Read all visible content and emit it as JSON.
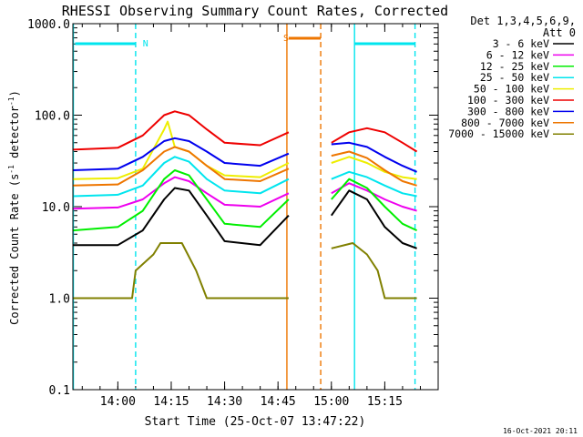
{
  "chart_data": {
    "type": "line",
    "title": "RHESSI Observing Summary Count Rates, Corrected",
    "xlabel": "Start Time (25-Oct-07 13:47:22)",
    "ylabel_main": "Corrected Count Rate (s",
    "ylabel_sup1": "-1",
    "ylabel_mid": " detector",
    "ylabel_sup2": "-1",
    "ylabel_end": ")",
    "y_scale": "log",
    "ylim": [
      0.1,
      1000
    ],
    "xlim": [
      "13:47:22",
      "15:30:00"
    ],
    "x_ticks": [
      "14:00",
      "14:15",
      "14:30",
      "14:45",
      "15:00",
      "15:15"
    ],
    "y_ticks": [
      "0.1",
      "1.0",
      "10.0",
      "100.0",
      "1000.0"
    ],
    "grid": false,
    "legend_position": "top-right",
    "legend_header": [
      "Det 1,3,4,5,6,9,",
      "Att 0"
    ],
    "footer_date": "16-Oct-2021 20:11",
    "markers": {
      "night_label": "N",
      "saa_label": "S",
      "night_color": "#00e5ee",
      "saa_color": "#ee7600"
    },
    "gap": [
      "14:49:00",
      "15:00:00"
    ],
    "series": [
      {
        "name": "3 - 6 keV",
        "color": "#000000",
        "values": [
          {
            "t": "13:47:22",
            "v": 3.8
          },
          {
            "t": "14:00:00",
            "v": 3.8
          },
          {
            "t": "14:07:00",
            "v": 5.5
          },
          {
            "t": "14:13:00",
            "v": 12
          },
          {
            "t": "14:16:00",
            "v": 16
          },
          {
            "t": "14:20:00",
            "v": 15
          },
          {
            "t": "14:25:00",
            "v": 8
          },
          {
            "t": "14:30:00",
            "v": 4.2
          },
          {
            "t": "14:40:00",
            "v": 3.8
          },
          {
            "t": "14:48:00",
            "v": 8
          },
          {
            "t": "15:00:00",
            "v": 8
          },
          {
            "t": "15:05:00",
            "v": 15
          },
          {
            "t": "15:10:00",
            "v": 12
          },
          {
            "t": "15:15:00",
            "v": 6
          },
          {
            "t": "15:20:00",
            "v": 4
          },
          {
            "t": "15:24:00",
            "v": 3.5
          }
        ]
      },
      {
        "name": "6 - 12 keV",
        "color": "#ee00ee",
        "values": [
          {
            "t": "13:47:22",
            "v": 9.5
          },
          {
            "t": "14:00:00",
            "v": 9.8
          },
          {
            "t": "14:07:00",
            "v": 12
          },
          {
            "t": "14:13:00",
            "v": 18
          },
          {
            "t": "14:16:00",
            "v": 21
          },
          {
            "t": "14:20:00",
            "v": 19
          },
          {
            "t": "14:25:00",
            "v": 14
          },
          {
            "t": "14:30:00",
            "v": 10.5
          },
          {
            "t": "14:40:00",
            "v": 10
          },
          {
            "t": "14:48:00",
            "v": 14
          },
          {
            "t": "15:00:00",
            "v": 14
          },
          {
            "t": "15:05:00",
            "v": 18
          },
          {
            "t": "15:10:00",
            "v": 15
          },
          {
            "t": "15:15:00",
            "v": 12
          },
          {
            "t": "15:20:00",
            "v": 10
          },
          {
            "t": "15:24:00",
            "v": 9
          }
        ]
      },
      {
        "name": "12 - 25 keV",
        "color": "#00ee00",
        "values": [
          {
            "t": "13:47:22",
            "v": 5.5
          },
          {
            "t": "14:00:00",
            "v": 6
          },
          {
            "t": "14:07:00",
            "v": 9
          },
          {
            "t": "14:13:00",
            "v": 20
          },
          {
            "t": "14:16:00",
            "v": 25
          },
          {
            "t": "14:20:00",
            "v": 22
          },
          {
            "t": "14:25:00",
            "v": 12
          },
          {
            "t": "14:30:00",
            "v": 6.5
          },
          {
            "t": "14:40:00",
            "v": 6
          },
          {
            "t": "14:48:00",
            "v": 12
          },
          {
            "t": "15:00:00",
            "v": 12
          },
          {
            "t": "15:05:00",
            "v": 20
          },
          {
            "t": "15:10:00",
            "v": 16
          },
          {
            "t": "15:15:00",
            "v": 10
          },
          {
            "t": "15:20:00",
            "v": 6.5
          },
          {
            "t": "15:24:00",
            "v": 5.5
          }
        ]
      },
      {
        "name": "25 - 50 keV",
        "color": "#00e5ee",
        "values": [
          {
            "t": "13:47:22",
            "v": 13
          },
          {
            "t": "14:00:00",
            "v": 13.5
          },
          {
            "t": "14:07:00",
            "v": 17
          },
          {
            "t": "14:13:00",
            "v": 30
          },
          {
            "t": "14:16:00",
            "v": 35
          },
          {
            "t": "14:20:00",
            "v": 31
          },
          {
            "t": "14:25:00",
            "v": 20
          },
          {
            "t": "14:30:00",
            "v": 15
          },
          {
            "t": "14:40:00",
            "v": 14
          },
          {
            "t": "14:48:00",
            "v": 20
          },
          {
            "t": "15:00:00",
            "v": 20
          },
          {
            "t": "15:05:00",
            "v": 24
          },
          {
            "t": "15:10:00",
            "v": 21
          },
          {
            "t": "15:15:00",
            "v": 17
          },
          {
            "t": "15:20:00",
            "v": 14
          },
          {
            "t": "15:24:00",
            "v": 13
          }
        ]
      },
      {
        "name": "50 - 100 keV",
        "color": "#eeee00",
        "values": [
          {
            "t": "13:47:22",
            "v": 20
          },
          {
            "t": "14:00:00",
            "v": 20.5
          },
          {
            "t": "14:07:00",
            "v": 26
          },
          {
            "t": "14:13:00",
            "v": 70
          },
          {
            "t": "14:14:00",
            "v": 85
          },
          {
            "t": "14:16:00",
            "v": 45
          },
          {
            "t": "14:20:00",
            "v": 40
          },
          {
            "t": "14:25:00",
            "v": 28
          },
          {
            "t": "14:30:00",
            "v": 22
          },
          {
            "t": "14:40:00",
            "v": 21
          },
          {
            "t": "14:48:00",
            "v": 30
          },
          {
            "t": "15:00:00",
            "v": 30
          },
          {
            "t": "15:05:00",
            "v": 35
          },
          {
            "t": "15:10:00",
            "v": 30
          },
          {
            "t": "15:15:00",
            "v": 24
          },
          {
            "t": "15:20:00",
            "v": 21
          },
          {
            "t": "15:24:00",
            "v": 20
          }
        ]
      },
      {
        "name": "100 - 300 keV",
        "color": "#ee0000",
        "values": [
          {
            "t": "13:47:22",
            "v": 42
          },
          {
            "t": "14:00:00",
            "v": 44
          },
          {
            "t": "14:07:00",
            "v": 60
          },
          {
            "t": "14:13:00",
            "v": 100
          },
          {
            "t": "14:16:00",
            "v": 110
          },
          {
            "t": "14:20:00",
            "v": 100
          },
          {
            "t": "14:25:00",
            "v": 70
          },
          {
            "t": "14:30:00",
            "v": 50
          },
          {
            "t": "14:40:00",
            "v": 47
          },
          {
            "t": "14:48:00",
            "v": 65
          },
          {
            "t": "15:00:00",
            "v": 50
          },
          {
            "t": "15:05:00",
            "v": 65
          },
          {
            "t": "15:10:00",
            "v": 72
          },
          {
            "t": "15:15:00",
            "v": 65
          },
          {
            "t": "15:20:00",
            "v": 50
          },
          {
            "t": "15:24:00",
            "v": 40
          }
        ]
      },
      {
        "name": "300 - 800 keV",
        "color": "#0000ee",
        "values": [
          {
            "t": "13:47:22",
            "v": 25
          },
          {
            "t": "14:00:00",
            "v": 26
          },
          {
            "t": "14:07:00",
            "v": 35
          },
          {
            "t": "14:13:00",
            "v": 52
          },
          {
            "t": "14:16:00",
            "v": 56
          },
          {
            "t": "14:20:00",
            "v": 52
          },
          {
            "t": "14:25:00",
            "v": 40
          },
          {
            "t": "14:30:00",
            "v": 30
          },
          {
            "t": "14:40:00",
            "v": 28
          },
          {
            "t": "14:48:00",
            "v": 38
          },
          {
            "t": "15:00:00",
            "v": 48
          },
          {
            "t": "15:05:00",
            "v": 50
          },
          {
            "t": "15:10:00",
            "v": 45
          },
          {
            "t": "15:15:00",
            "v": 35
          },
          {
            "t": "15:20:00",
            "v": 28
          },
          {
            "t": "15:24:00",
            "v": 24
          }
        ]
      },
      {
        "name": "800 - 7000 keV",
        "color": "#ee7600",
        "values": [
          {
            "t": "13:47:22",
            "v": 17
          },
          {
            "t": "14:00:00",
            "v": 17.5
          },
          {
            "t": "14:07:00",
            "v": 25
          },
          {
            "t": "14:13:00",
            "v": 40
          },
          {
            "t": "14:16:00",
            "v": 45
          },
          {
            "t": "14:20:00",
            "v": 40
          },
          {
            "t": "14:25:00",
            "v": 28
          },
          {
            "t": "14:30:00",
            "v": 20
          },
          {
            "t": "14:40:00",
            "v": 19
          },
          {
            "t": "14:48:00",
            "v": 26
          },
          {
            "t": "15:00:00",
            "v": 36
          },
          {
            "t": "15:05:00",
            "v": 40
          },
          {
            "t": "15:10:00",
            "v": 34
          },
          {
            "t": "15:15:00",
            "v": 25
          },
          {
            "t": "15:20:00",
            "v": 19
          },
          {
            "t": "15:24:00",
            "v": 17
          }
        ]
      },
      {
        "name": "7000 - 15000 keV",
        "color": "#808000",
        "values": [
          {
            "t": "13:47:22",
            "v": 1
          },
          {
            "t": "14:04:00",
            "v": 1
          },
          {
            "t": "14:05:00",
            "v": 2
          },
          {
            "t": "14:10:00",
            "v": 3
          },
          {
            "t": "14:12:00",
            "v": 4
          },
          {
            "t": "14:18:00",
            "v": 4
          },
          {
            "t": "14:22:00",
            "v": 2
          },
          {
            "t": "14:25:00",
            "v": 1
          },
          {
            "t": "14:48:00",
            "v": 1
          },
          {
            "t": "15:00:00",
            "v": 3.5
          },
          {
            "t": "15:06:00",
            "v": 4
          },
          {
            "t": "15:10:00",
            "v": 3
          },
          {
            "t": "15:13:00",
            "v": 2
          },
          {
            "t": "15:15:00",
            "v": 1
          },
          {
            "t": "15:24:00",
            "v": 1
          }
        ]
      }
    ]
  }
}
